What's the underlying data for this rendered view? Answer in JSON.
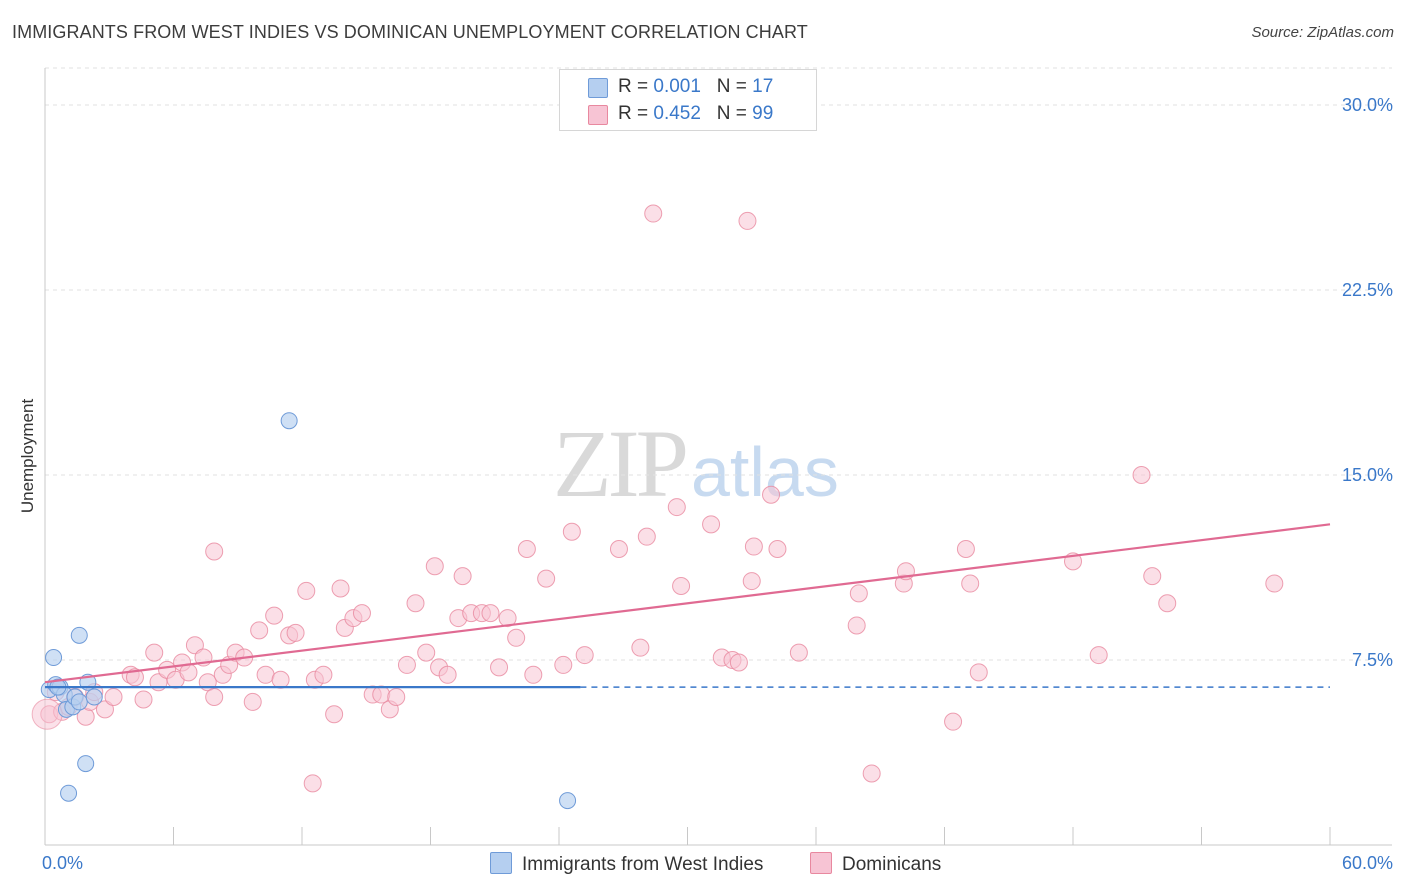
{
  "header": {
    "title": "IMMIGRANTS FROM WEST INDIES VS DOMINICAN UNEMPLOYMENT CORRELATION CHART",
    "source": "Source: ZipAtlas.com"
  },
  "watermark": {
    "zip": "ZIP",
    "atlas": "atlas"
  },
  "legend": {
    "rows": [
      {
        "r_label": "R =",
        "r_value": "0.001",
        "n_label": "N =",
        "n_value": "17"
      },
      {
        "r_label": "R =",
        "r_value": "0.452",
        "n_label": "N =",
        "n_value": "99"
      }
    ]
  },
  "bottom_legend": {
    "series1": "Immigrants from West Indies",
    "series2": "Dominicans"
  },
  "colors": {
    "blue_fill": "#b5cff0",
    "blue_stroke": "#6f9bd8",
    "blue_line": "#3a78c9",
    "pink_fill": "#f7c4d4",
    "pink_stroke": "#e8889f",
    "pink_line": "#e06a92",
    "grid": "#e2e2e2",
    "accent_text": "#3a78c9"
  },
  "chart_data": {
    "type": "scatter",
    "title": "IMMIGRANTS FROM WEST INDIES VS DOMINICAN UNEMPLOYMENT CORRELATION CHART",
    "xlabel": "",
    "ylabel": "Unemployment",
    "xlim": [
      0,
      60
    ],
    "ylim": [
      0,
      31.5
    ],
    "x_tick_labels": [
      "0.0%",
      "60.0%"
    ],
    "y_ticks": [
      7.5,
      15.0,
      22.5,
      30.0
    ],
    "y_tick_labels": [
      "7.5%",
      "15.0%",
      "22.5%",
      "30.0%"
    ],
    "grid": true,
    "legend_position": "top-center",
    "series": [
      {
        "name": "Immigrants from West Indies",
        "R": 0.001,
        "N": 17,
        "points": [
          [
            0.2,
            6.3
          ],
          [
            0.4,
            7.6
          ],
          [
            0.5,
            6.5
          ],
          [
            0.7,
            6.4
          ],
          [
            0.9,
            6.1
          ],
          [
            1.0,
            5.5
          ],
          [
            1.1,
            2.1
          ],
          [
            1.3,
            5.6
          ],
          [
            1.4,
            6.0
          ],
          [
            1.6,
            5.8
          ],
          [
            1.6,
            8.5
          ],
          [
            1.9,
            3.3
          ],
          [
            2.0,
            6.6
          ],
          [
            2.3,
            6.0
          ],
          [
            11.4,
            17.2
          ],
          [
            24.4,
            1.8
          ],
          [
            0.6,
            6.4
          ]
        ],
        "trend": {
          "x": [
            0,
            25
          ],
          "y": [
            6.4,
            6.4
          ]
        },
        "trend_dashed": {
          "x": [
            25,
            60
          ],
          "y": [
            6.4,
            6.4
          ]
        }
      },
      {
        "name": "Dominicans",
        "R": 0.452,
        "N": 99,
        "points": [
          [
            0.2,
            5.3
          ],
          [
            0.5,
            6.2
          ],
          [
            0.8,
            5.4
          ],
          [
            1.1,
            5.6
          ],
          [
            1.4,
            6.0
          ],
          [
            1.9,
            5.2
          ],
          [
            2.1,
            5.8
          ],
          [
            2.3,
            6.2
          ],
          [
            2.8,
            5.5
          ],
          [
            3.2,
            6.0
          ],
          [
            4.0,
            6.9
          ],
          [
            4.2,
            6.8
          ],
          [
            4.6,
            5.9
          ],
          [
            5.1,
            7.8
          ],
          [
            5.3,
            6.6
          ],
          [
            5.7,
            7.1
          ],
          [
            6.1,
            6.7
          ],
          [
            6.4,
            7.4
          ],
          [
            6.7,
            7.0
          ],
          [
            7.0,
            8.1
          ],
          [
            7.4,
            7.6
          ],
          [
            7.6,
            6.6
          ],
          [
            7.9,
            6.0
          ],
          [
            7.9,
            11.9
          ],
          [
            8.3,
            6.9
          ],
          [
            8.6,
            7.3
          ],
          [
            8.9,
            7.8
          ],
          [
            9.3,
            7.6
          ],
          [
            9.7,
            5.8
          ],
          [
            10.0,
            8.7
          ],
          [
            10.3,
            6.9
          ],
          [
            10.7,
            9.3
          ],
          [
            11.0,
            6.7
          ],
          [
            11.4,
            8.5
          ],
          [
            11.7,
            8.6
          ],
          [
            12.2,
            10.3
          ],
          [
            12.6,
            6.7
          ],
          [
            13.0,
            6.9
          ],
          [
            13.5,
            5.3
          ],
          [
            13.8,
            10.4
          ],
          [
            14.0,
            8.8
          ],
          [
            14.4,
            9.2
          ],
          [
            14.8,
            9.4
          ],
          [
            15.3,
            6.1
          ],
          [
            15.7,
            6.1
          ],
          [
            16.1,
            5.5
          ],
          [
            16.4,
            6.0
          ],
          [
            16.9,
            7.3
          ],
          [
            17.3,
            9.8
          ],
          [
            17.8,
            7.8
          ],
          [
            18.2,
            11.3
          ],
          [
            18.4,
            7.2
          ],
          [
            18.8,
            6.9
          ],
          [
            19.3,
            9.2
          ],
          [
            19.5,
            10.9
          ],
          [
            19.9,
            9.4
          ],
          [
            20.4,
            9.4
          ],
          [
            20.8,
            9.4
          ],
          [
            21.2,
            7.2
          ],
          [
            21.6,
            9.2
          ],
          [
            22.0,
            8.4
          ],
          [
            22.5,
            12.0
          ],
          [
            22.8,
            6.9
          ],
          [
            23.4,
            10.8
          ],
          [
            24.2,
            7.3
          ],
          [
            24.6,
            12.7
          ],
          [
            25.2,
            7.7
          ],
          [
            26.8,
            12.0
          ],
          [
            27.8,
            8.0
          ],
          [
            28.1,
            12.5
          ],
          [
            28.4,
            25.6
          ],
          [
            29.5,
            13.7
          ],
          [
            29.7,
            10.5
          ],
          [
            31.1,
            13.0
          ],
          [
            31.6,
            7.6
          ],
          [
            32.1,
            7.5
          ],
          [
            32.4,
            7.4
          ],
          [
            32.8,
            25.3
          ],
          [
            33.0,
            10.7
          ],
          [
            33.1,
            12.1
          ],
          [
            33.9,
            14.2
          ],
          [
            34.2,
            12.0
          ],
          [
            35.2,
            7.8
          ],
          [
            37.9,
            8.9
          ],
          [
            38.0,
            10.2
          ],
          [
            40.1,
            10.6
          ],
          [
            40.2,
            11.1
          ],
          [
            42.4,
            5.0
          ],
          [
            43.0,
            12.0
          ],
          [
            43.2,
            10.6
          ],
          [
            43.6,
            7.0
          ],
          [
            48.0,
            11.5
          ],
          [
            49.2,
            7.7
          ],
          [
            51.2,
            15.0
          ],
          [
            51.7,
            10.9
          ],
          [
            52.4,
            9.8
          ],
          [
            57.4,
            10.6
          ],
          [
            38.6,
            2.9
          ],
          [
            12.5,
            2.5
          ]
        ],
        "trend": {
          "x": [
            0,
            60
          ],
          "y": [
            6.6,
            13.0
          ]
        }
      }
    ]
  }
}
